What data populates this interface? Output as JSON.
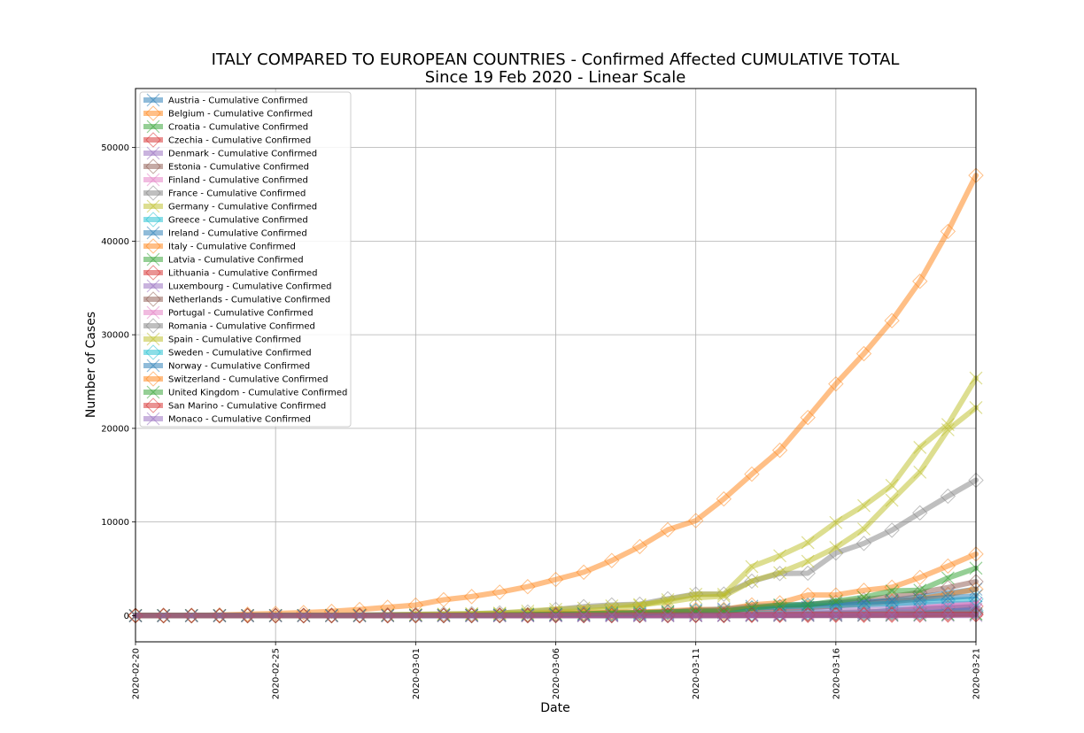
{
  "chart_data": {
    "type": "line",
    "title": "ITALY COMPARED TO EUROPEAN COUNTRIES - Confirmed Affected CUMULATIVE TOTAL",
    "subtitle": "Since 19 Feb 2020 - Linear Scale",
    "xlabel": "Date",
    "ylabel": "Number of Cases",
    "ylim": [
      -2800,
      56300
    ],
    "yticks": [
      0,
      10000,
      20000,
      30000,
      40000,
      50000
    ],
    "x_dates": [
      "2020-02-20",
      "2020-02-21",
      "2020-02-22",
      "2020-02-23",
      "2020-02-24",
      "2020-02-25",
      "2020-02-26",
      "2020-02-27",
      "2020-02-28",
      "2020-02-29",
      "2020-03-01",
      "2020-03-02",
      "2020-03-03",
      "2020-03-04",
      "2020-03-05",
      "2020-03-06",
      "2020-03-07",
      "2020-03-08",
      "2020-03-09",
      "2020-03-10",
      "2020-03-11",
      "2020-03-12",
      "2020-03-13",
      "2020-03-14",
      "2020-03-15",
      "2020-03-16",
      "2020-03-17",
      "2020-03-18",
      "2020-03-19",
      "2020-03-20",
      "2020-03-21"
    ],
    "xticks": [
      "2020-02-20",
      "2020-02-25",
      "2020-03-01",
      "2020-03-06",
      "2020-03-11",
      "2020-03-16",
      "2020-03-21"
    ],
    "grid": true,
    "legend_position": "top-left",
    "series": [
      {
        "name": "Austria - Cumulative Confirmed",
        "color": "#1f77b4",
        "marker": "x",
        "values": [
          0,
          0,
          0,
          0,
          0,
          2,
          2,
          3,
          3,
          9,
          14,
          18,
          21,
          29,
          41,
          55,
          79,
          104,
          131,
          182,
          246,
          302,
          504,
          655,
          860,
          1018,
          1332,
          1646,
          2013,
          2388,
          2814
        ]
      },
      {
        "name": "Belgium - Cumulative Confirmed",
        "color": "#ff7f0e",
        "marker": "diamond",
        "values": [
          1,
          1,
          1,
          1,
          1,
          1,
          1,
          1,
          1,
          1,
          2,
          8,
          13,
          23,
          50,
          109,
          169,
          200,
          239,
          267,
          314,
          314,
          559,
          689,
          886,
          1058,
          1243,
          1486,
          1795,
          2257,
          2815
        ]
      },
      {
        "name": "Croatia - Cumulative Confirmed",
        "color": "#2ca02c",
        "marker": "x",
        "values": [
          0,
          0,
          0,
          0,
          0,
          1,
          3,
          3,
          5,
          7,
          7,
          7,
          9,
          10,
          10,
          11,
          12,
          12,
          12,
          14,
          19,
          27,
          32,
          38,
          49,
          57,
          65,
          81,
          105,
          128,
          206
        ]
      },
      {
        "name": "Czechia - Cumulative Confirmed",
        "color": "#d62728",
        "marker": "diamond",
        "values": [
          0,
          0,
          0,
          0,
          0,
          0,
          0,
          0,
          0,
          0,
          3,
          3,
          5,
          8,
          12,
          18,
          19,
          31,
          31,
          41,
          91,
          94,
          141,
          189,
          253,
          298,
          396,
          464,
          694,
          833,
          995
        ]
      },
      {
        "name": "Denmark - Cumulative Confirmed",
        "color": "#9467bd",
        "marker": "x",
        "values": [
          0,
          0,
          0,
          0,
          0,
          0,
          0,
          1,
          1,
          3,
          4,
          4,
          6,
          10,
          10,
          23,
          23,
          35,
          90,
          262,
          442,
          615,
          801,
          827,
          864,
          914,
          977,
          1057,
          1151,
          1255,
          1326
        ]
      },
      {
        "name": "Estonia - Cumulative Confirmed",
        "color": "#8c564b",
        "marker": "diamond",
        "values": [
          0,
          0,
          0,
          0,
          0,
          0,
          0,
          1,
          1,
          1,
          1,
          1,
          2,
          2,
          3,
          10,
          10,
          10,
          10,
          12,
          16,
          16,
          79,
          115,
          171,
          205,
          225,
          258,
          267,
          283,
          306
        ]
      },
      {
        "name": "Finland - Cumulative Confirmed",
        "color": "#e377c2",
        "marker": "x",
        "values": [
          1,
          1,
          1,
          1,
          1,
          1,
          2,
          2,
          2,
          3,
          6,
          6,
          6,
          6,
          12,
          15,
          15,
          23,
          30,
          40,
          59,
          59,
          155,
          225,
          244,
          277,
          321,
          336,
          400,
          450,
          523
        ]
      },
      {
        "name": "France - Cumulative Confirmed",
        "color": "#7f7f7f",
        "marker": "diamond",
        "values": [
          12,
          12,
          12,
          12,
          12,
          12,
          18,
          38,
          57,
          100,
          130,
          191,
          204,
          288,
          380,
          656,
          957,
          1136,
          1219,
          1794,
          2293,
          2293,
          3681,
          4496,
          4532,
          6683,
          7715,
          9124,
          10970,
          12758,
          14463
        ]
      },
      {
        "name": "Germany - Cumulative Confirmed",
        "color": "#bcbd22",
        "marker": "x",
        "values": [
          16,
          16,
          16,
          16,
          16,
          16,
          18,
          26,
          48,
          79,
          130,
          159,
          196,
          262,
          482,
          670,
          799,
          1040,
          1176,
          1457,
          1908,
          2078,
          3675,
          4585,
          5795,
          7272,
          9257,
          12327,
          15320,
          19848,
          22213
        ]
      },
      {
        "name": "Greece - Cumulative Confirmed",
        "color": "#17becf",
        "marker": "diamond",
        "values": [
          0,
          0,
          0,
          0,
          0,
          0,
          1,
          3,
          4,
          4,
          7,
          7,
          7,
          9,
          31,
          45,
          46,
          73,
          73,
          89,
          99,
          99,
          190,
          228,
          331,
          331,
          387,
          418,
          418,
          495,
          530
        ]
      },
      {
        "name": "Ireland - Cumulative Confirmed",
        "color": "#1f77b4",
        "marker": "x",
        "values": [
          0,
          0,
          0,
          0,
          0,
          0,
          0,
          0,
          0,
          1,
          1,
          1,
          2,
          6,
          6,
          18,
          18,
          19,
          21,
          34,
          43,
          43,
          90,
          129,
          169,
          223,
          292,
          557,
          683,
          785,
          906
        ]
      },
      {
        "name": "Italy - Cumulative Confirmed",
        "color": "#ff7f0e",
        "marker": "diamond",
        "values": [
          3,
          3,
          20,
          62,
          155,
          229,
          322,
          453,
          655,
          888,
          1128,
          1694,
          2036,
          2502,
          3089,
          3858,
          4636,
          5883,
          7375,
          9172,
          10149,
          12462,
          15113,
          17660,
          21157,
          24747,
          27980,
          31506,
          35713,
          41035,
          47021
        ]
      },
      {
        "name": "Latvia - Cumulative Confirmed",
        "color": "#2ca02c",
        "marker": "x",
        "values": [
          0,
          0,
          0,
          0,
          0,
          0,
          0,
          0,
          0,
          0,
          0,
          1,
          1,
          1,
          1,
          2,
          2,
          6,
          8,
          10,
          10,
          16,
          17,
          26,
          30,
          34,
          49,
          71,
          86,
          111,
          124
        ]
      },
      {
        "name": "Lithuania - Cumulative Confirmed",
        "color": "#d62728",
        "marker": "diamond",
        "values": [
          0,
          0,
          0,
          0,
          0,
          0,
          0,
          0,
          1,
          1,
          1,
          1,
          1,
          1,
          1,
          1,
          1,
          1,
          1,
          3,
          3,
          3,
          6,
          8,
          12,
          17,
          25,
          27,
          36,
          49,
          83
        ]
      },
      {
        "name": "Luxembourg - Cumulative Confirmed",
        "color": "#9467bd",
        "marker": "x",
        "values": [
          0,
          0,
          0,
          0,
          0,
          0,
          0,
          0,
          0,
          1,
          1,
          1,
          2,
          2,
          2,
          3,
          4,
          5,
          5,
          7,
          7,
          26,
          34,
          51,
          59,
          77,
          140,
          203,
          335,
          484,
          670
        ]
      },
      {
        "name": "Netherlands - Cumulative Confirmed",
        "color": "#8c564b",
        "marker": "diamond",
        "values": [
          0,
          0,
          0,
          0,
          0,
          0,
          0,
          1,
          1,
          6,
          10,
          18,
          24,
          38,
          82,
          128,
          188,
          265,
          321,
          382,
          503,
          503,
          804,
          959,
          1135,
          1413,
          1705,
          2051,
          2460,
          2994,
          3631
        ]
      },
      {
        "name": "Portugal - Cumulative Confirmed",
        "color": "#e377c2",
        "marker": "x",
        "values": [
          0,
          0,
          0,
          0,
          0,
          0,
          0,
          0,
          0,
          0,
          0,
          2,
          2,
          5,
          8,
          13,
          20,
          30,
          30,
          41,
          59,
          59,
          112,
          169,
          245,
          331,
          448,
          448,
          785,
          1020,
          1280
        ]
      },
      {
        "name": "Romania - Cumulative Confirmed",
        "color": "#7f7f7f",
        "marker": "diamond",
        "values": [
          0,
          0,
          0,
          0,
          0,
          0,
          1,
          1,
          3,
          3,
          3,
          3,
          3,
          4,
          6,
          9,
          9,
          15,
          15,
          25,
          45,
          49,
          89,
          123,
          131,
          158,
          184,
          260,
          277,
          308,
          367
        ]
      },
      {
        "name": "Spain - Cumulative Confirmed",
        "color": "#bcbd22",
        "marker": "x",
        "values": [
          2,
          2,
          2,
          2,
          2,
          6,
          13,
          15,
          32,
          45,
          84,
          120,
          165,
          222,
          259,
          400,
          500,
          673,
          1073,
          1695,
          2277,
          2277,
          5232,
          6391,
          7798,
          9942,
          11748,
          13910,
          17963,
          20410,
          25374
        ]
      },
      {
        "name": "Sweden - Cumulative Confirmed",
        "color": "#17becf",
        "marker": "diamond",
        "values": [
          1,
          1,
          1,
          1,
          1,
          1,
          2,
          7,
          7,
          12,
          14,
          15,
          21,
          35,
          94,
          101,
          161,
          203,
          248,
          355,
          500,
          599,
          814,
          961,
          1022,
          1103,
          1190,
          1279,
          1439,
          1639,
          1763
        ]
      },
      {
        "name": "Norway - Cumulative Confirmed",
        "color": "#1f77b4",
        "marker": "x",
        "values": [
          0,
          0,
          0,
          0,
          0,
          0,
          1,
          1,
          6,
          15,
          19,
          25,
          32,
          56,
          87,
          108,
          147,
          176,
          205,
          400,
          598,
          702,
          996,
          1090,
          1221,
          1333,
          1463,
          1550,
          1746,
          1914,
          2118
        ]
      },
      {
        "name": "Switzerland - Cumulative Confirmed",
        "color": "#ff7f0e",
        "marker": "diamond",
        "values": [
          0,
          0,
          0,
          0,
          0,
          1,
          1,
          8,
          8,
          18,
          27,
          42,
          56,
          90,
          114,
          214,
          268,
          337,
          374,
          491,
          652,
          652,
          1139,
          1359,
          2200,
          2200,
          2700,
          3028,
          4075,
          5294,
          6575
        ]
      },
      {
        "name": "United Kingdom - Cumulative Confirmed",
        "color": "#2ca02c",
        "marker": "x",
        "values": [
          9,
          9,
          9,
          9,
          13,
          13,
          13,
          15,
          20,
          23,
          36,
          40,
          51,
          86,
          116,
          164,
          207,
          274,
          322,
          384,
          459,
          459,
          802,
          1144,
          1145,
          1551,
          1960,
          2642,
          2716,
          4014,
          5067
        ]
      },
      {
        "name": "San Marino - Cumulative Confirmed",
        "color": "#d62728",
        "marker": "diamond",
        "values": [
          0,
          0,
          0,
          0,
          0,
          0,
          0,
          1,
          1,
          1,
          8,
          10,
          16,
          21,
          21,
          23,
          36,
          36,
          51,
          62,
          69,
          69,
          80,
          80,
          101,
          109,
          109,
          119,
          119,
          144,
          144
        ]
      },
      {
        "name": "Monaco - Cumulative Confirmed",
        "color": "#9467bd",
        "marker": "x",
        "values": [
          0,
          0,
          0,
          0,
          0,
          0,
          0,
          0,
          1,
          1,
          1,
          1,
          1,
          1,
          1,
          1,
          1,
          1,
          1,
          1,
          1,
          2,
          2,
          2,
          7,
          7,
          7,
          7,
          7,
          11,
          11
        ]
      }
    ]
  }
}
